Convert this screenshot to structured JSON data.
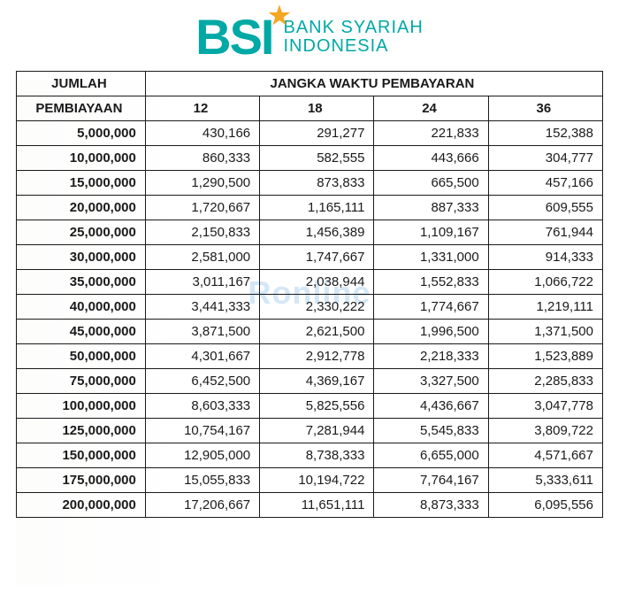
{
  "logo": {
    "abbrev": "BSI",
    "line1": "BANK SYARIAH",
    "line2": "INDONESIA",
    "brand_color": "#00a9a5",
    "star_color": "#f5a623"
  },
  "watermark_text": "Ronline",
  "table": {
    "type": "table",
    "header_left_line1": "JUMLAH",
    "header_left_line2": "PEMBIAYAAN",
    "header_right": "JANGKA WAKTU PEMBAYARAN",
    "columns": [
      "12",
      "18",
      "24",
      "36"
    ],
    "column_align": [
      "right",
      "right",
      "right",
      "right"
    ],
    "rows": [
      {
        "amount": "5,000,000",
        "v": [
          "430,166",
          "291,277",
          "221,833",
          "152,388"
        ]
      },
      {
        "amount": "10,000,000",
        "v": [
          "860,333",
          "582,555",
          "443,666",
          "304,777"
        ]
      },
      {
        "amount": "15,000,000",
        "v": [
          "1,290,500",
          "873,833",
          "665,500",
          "457,166"
        ]
      },
      {
        "amount": "20,000,000",
        "v": [
          "1,720,667",
          "1,165,111",
          "887,333",
          "609,555"
        ]
      },
      {
        "amount": "25,000,000",
        "v": [
          "2,150,833",
          "1,456,389",
          "1,109,167",
          "761,944"
        ]
      },
      {
        "amount": "30,000,000",
        "v": [
          "2,581,000",
          "1,747,667",
          "1,331,000",
          "914,333"
        ]
      },
      {
        "amount": "35,000,000",
        "v": [
          "3,011,167",
          "2,038,944",
          "1,552,833",
          "1,066,722"
        ]
      },
      {
        "amount": "40,000,000",
        "v": [
          "3,441,333",
          "2,330,222",
          "1,774,667",
          "1,219,111"
        ]
      },
      {
        "amount": "45,000,000",
        "v": [
          "3,871,500",
          "2,621,500",
          "1,996,500",
          "1,371,500"
        ]
      },
      {
        "amount": "50,000,000",
        "v": [
          "4,301,667",
          "2,912,778",
          "2,218,333",
          "1,523,889"
        ]
      },
      {
        "amount": "75,000,000",
        "v": [
          "6,452,500",
          "4,369,167",
          "3,327,500",
          "2,285,833"
        ]
      },
      {
        "amount": "100,000,000",
        "v": [
          "8,603,333",
          "5,825,556",
          "4,436,667",
          "3,047,778"
        ]
      },
      {
        "amount": "125,000,000",
        "v": [
          "10,754,167",
          "7,281,944",
          "5,545,833",
          "3,809,722"
        ]
      },
      {
        "amount": "150,000,000",
        "v": [
          "12,905,000",
          "8,738,333",
          "6,655,000",
          "4,571,667"
        ]
      },
      {
        "amount": "175,000,000",
        "v": [
          "15,055,833",
          "10,194,722",
          "7,764,167",
          "5,333,611"
        ]
      },
      {
        "amount": "200,000,000",
        "v": [
          "17,206,667",
          "11,651,111",
          "8,873,333",
          "6,095,556"
        ]
      }
    ],
    "border_color": "#1a1a1a",
    "text_color": "#1a1a1a",
    "header_fontsize": 15,
    "cell_fontsize": 15,
    "amount_fontweight": 700,
    "value_fontweight": 400,
    "background_color": "#ffffff"
  }
}
